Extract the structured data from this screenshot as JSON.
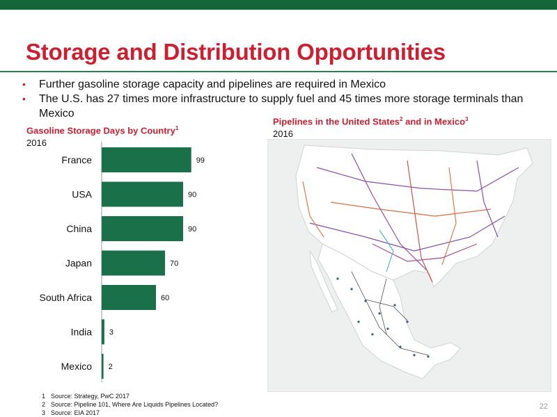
{
  "slide": {
    "title": "Storage and Distribution Opportunities",
    "bullets": [
      "Further gasoline storage capacity and pipelines are required in Mexico",
      "The U.S. has 27 times more infrastructure to supply fuel and 45 times more storage terminals than Mexico"
    ],
    "page_number": "22"
  },
  "bar_panel": {
    "title": "Gasoline Storage Days by Country",
    "title_sup": "1",
    "year": "2016"
  },
  "map_panel": {
    "title_part1": "Pipelines in the United States",
    "sup1": "2",
    "title_part2": " and in Mexico",
    "sup2": "3",
    "year": "2016"
  },
  "footnotes": [
    {
      "num": "1",
      "text": "Source: Strategy, PwC 2017"
    },
    {
      "num": "2",
      "text": "Source: Pipeline 101, Where Are Liquids Pipelines Located?"
    },
    {
      "num": "3",
      "text": "Source: EIA 2017"
    }
  ],
  "colors": {
    "brand_green": "#14663a",
    "bar_green": "#1a7048",
    "title_red": "#cc1f2f"
  },
  "chart_data": {
    "type": "bar",
    "orientation": "horizontal",
    "title": "Gasoline Storage Days by Country",
    "categories": [
      "France",
      "USA",
      "China",
      "Japan",
      "South Africa",
      "India",
      "Mexico"
    ],
    "values": [
      99,
      90,
      90,
      70,
      60,
      3,
      2
    ],
    "xlim": [
      0,
      100
    ]
  }
}
